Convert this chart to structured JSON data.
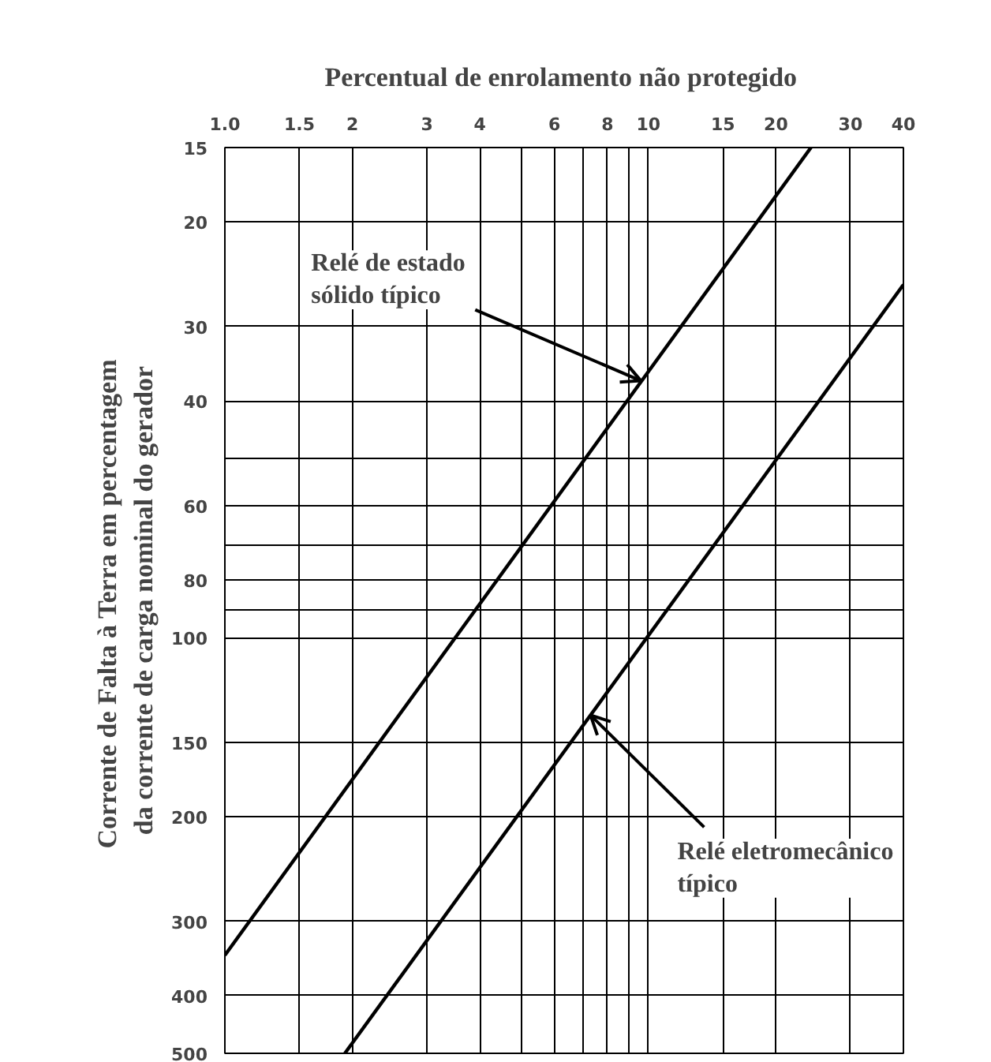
{
  "chart_data": {
    "type": "line",
    "xlabel": "Percentual de enrolamento  não protegido",
    "ylabel": "Corrente de Falta à  Terra em percentagem\nda corrente de carga nominal do gerador",
    "log": "xy",
    "grid": true,
    "marker": "none",
    "line_style": "solid",
    "xlim": [
      1.0,
      40
    ],
    "ylim": [
      500,
      15
    ],
    "xticks": [
      {
        "value": 1,
        "label": "1.0"
      },
      1.5,
      2,
      3,
      4,
      {
        "value": 5,
        "label": null
      },
      6,
      {
        "value": 7,
        "label": null
      },
      8,
      {
        "value": 9,
        "label": null
      },
      10,
      15,
      20,
      30,
      40
    ],
    "yticks": [
      15,
      20,
      30,
      40,
      {
        "value": 50,
        "label": null
      },
      60,
      {
        "value": 70,
        "label": null
      },
      80,
      {
        "value": 90,
        "label": null
      },
      100,
      150,
      200,
      300,
      400,
      500
    ],
    "series": [
      {
        "color": "#000000",
        "x": [
          1.0,
          24.2
        ],
        "values": [
          342,
          15
        ]
      },
      {
        "color": "#000000",
        "x": [
          1.92,
          40
        ],
        "values": [
          500,
          25.5
        ]
      }
    ],
    "annotations": [
      {
        "text": "Relé de estado\nsólido típico",
        "x": 9.6,
        "y": 37
      },
      {
        "text": "Relé eletromecânico\ntípico",
        "x": 7.3,
        "y": 135
      }
    ]
  }
}
